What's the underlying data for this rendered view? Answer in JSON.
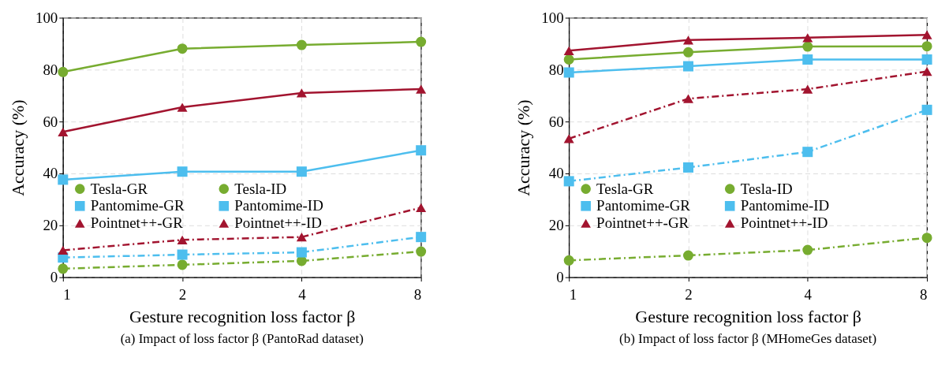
{
  "chart_data": [
    {
      "type": "line",
      "title": "(a) Impact of loss factor β (PantoRad dataset)",
      "xlabel": "Gesture recognition loss factor β",
      "ylabel": "Accuracy (%)",
      "x": [
        1,
        2,
        4,
        8
      ],
      "log": "x",
      "xlim": [
        1,
        8
      ],
      "xticks": [
        1,
        2,
        4,
        8
      ],
      "ylim": [
        0,
        100
      ],
      "yticks": [
        0,
        20,
        40,
        60,
        80,
        100
      ],
      "grid": true,
      "legend": "bottom left",
      "series": [
        {
          "name": "Tesla-GR",
          "color": "#77ac30",
          "marker": "circle",
          "line_style": "solid",
          "values": [
            79.1,
            88.1,
            89.5,
            90.7
          ]
        },
        {
          "name": "Tesla-ID",
          "color": "#77ac30",
          "marker": "circle",
          "line_style": "dashed",
          "values": [
            3.3,
            4.8,
            6.3,
            9.9
          ]
        },
        {
          "name": "Pantomime-GR",
          "color": "#4dbeee",
          "marker": "square",
          "line_style": "solid",
          "values": [
            37.6,
            40.7,
            40.7,
            48.9
          ]
        },
        {
          "name": "Pantomime-ID",
          "color": "#4dbeee",
          "marker": "square",
          "line_style": "dashed",
          "values": [
            7.6,
            8.7,
            9.6,
            15.5
          ]
        },
        {
          "name": "Pointnet++-GR",
          "color": "#a2142f",
          "marker": "triangle",
          "line_style": "solid",
          "values": [
            56.0,
            65.5,
            71.0,
            72.5
          ]
        },
        {
          "name": "Pointnet++-ID",
          "color": "#a2142f",
          "marker": "triangle",
          "line_style": "dashed",
          "values": [
            10.4,
            14.4,
            15.5,
            26.8
          ]
        }
      ]
    },
    {
      "type": "line",
      "title": "(b) Impact of loss factor β (MHomeGes dataset)",
      "xlabel": "Gesture recognition loss factor β",
      "ylabel": "Accuracy (%)",
      "x": [
        1,
        2,
        4,
        8
      ],
      "log": "x",
      "xlim": [
        1,
        8
      ],
      "xticks": [
        1,
        2,
        4,
        8
      ],
      "ylim": [
        0,
        100
      ],
      "yticks": [
        0,
        20,
        40,
        60,
        80,
        100
      ],
      "grid": true,
      "legend": "bottom left",
      "series": [
        {
          "name": "Tesla-GR",
          "color": "#77ac30",
          "marker": "circle",
          "line_style": "solid",
          "values": [
            83.9,
            86.7,
            88.9,
            89.0
          ]
        },
        {
          "name": "Tesla-ID",
          "color": "#77ac30",
          "marker": "circle",
          "line_style": "dashed",
          "values": [
            6.5,
            8.4,
            10.5,
            15.2
          ]
        },
        {
          "name": "Pantomime-GR",
          "color": "#4dbeee",
          "marker": "square",
          "line_style": "solid",
          "values": [
            78.9,
            81.3,
            83.9,
            83.9
          ]
        },
        {
          "name": "Pantomime-ID",
          "color": "#4dbeee",
          "marker": "square",
          "line_style": "dashed",
          "values": [
            37.0,
            42.3,
            48.3,
            64.5
          ]
        },
        {
          "name": "Pointnet++-GR",
          "color": "#a2142f",
          "marker": "triangle",
          "line_style": "solid",
          "values": [
            87.3,
            91.4,
            92.3,
            93.4
          ]
        },
        {
          "name": "Pointnet++-ID",
          "color": "#a2142f",
          "marker": "triangle",
          "line_style": "dashed",
          "values": [
            53.4,
            68.8,
            72.5,
            79.3
          ]
        }
      ]
    }
  ]
}
